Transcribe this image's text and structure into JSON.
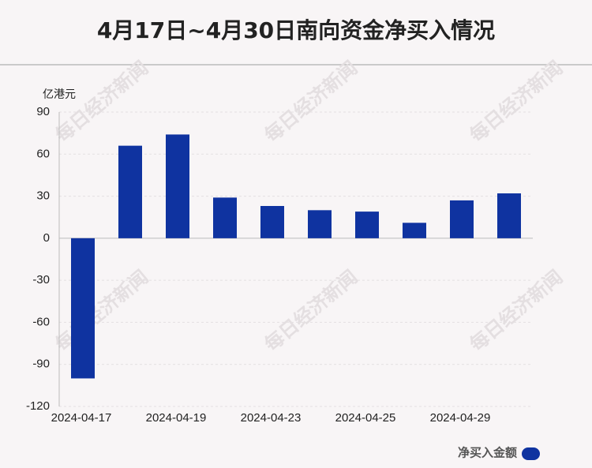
{
  "chart_data": {
    "type": "bar",
    "title": "4月17日~4月30日南向资金净买入情况",
    "y_unit": "亿港元",
    "watermark": "每日经济新闻",
    "categories": [
      "2024-04-17",
      null,
      "2024-04-19",
      null,
      "2024-04-23",
      null,
      "2024-04-25",
      null,
      "2024-04-29",
      null
    ],
    "series": [
      {
        "name": "净买入金额",
        "color": "#0f33a0",
        "values": [
          -100,
          66,
          74,
          29,
          23,
          20,
          19,
          11,
          27,
          32
        ]
      }
    ],
    "ylim": [
      -120,
      90
    ],
    "yticks": [
      -120,
      -90,
      -60,
      -30,
      0,
      30,
      60,
      90
    ],
    "grid": true,
    "legend": "bottom-right"
  }
}
